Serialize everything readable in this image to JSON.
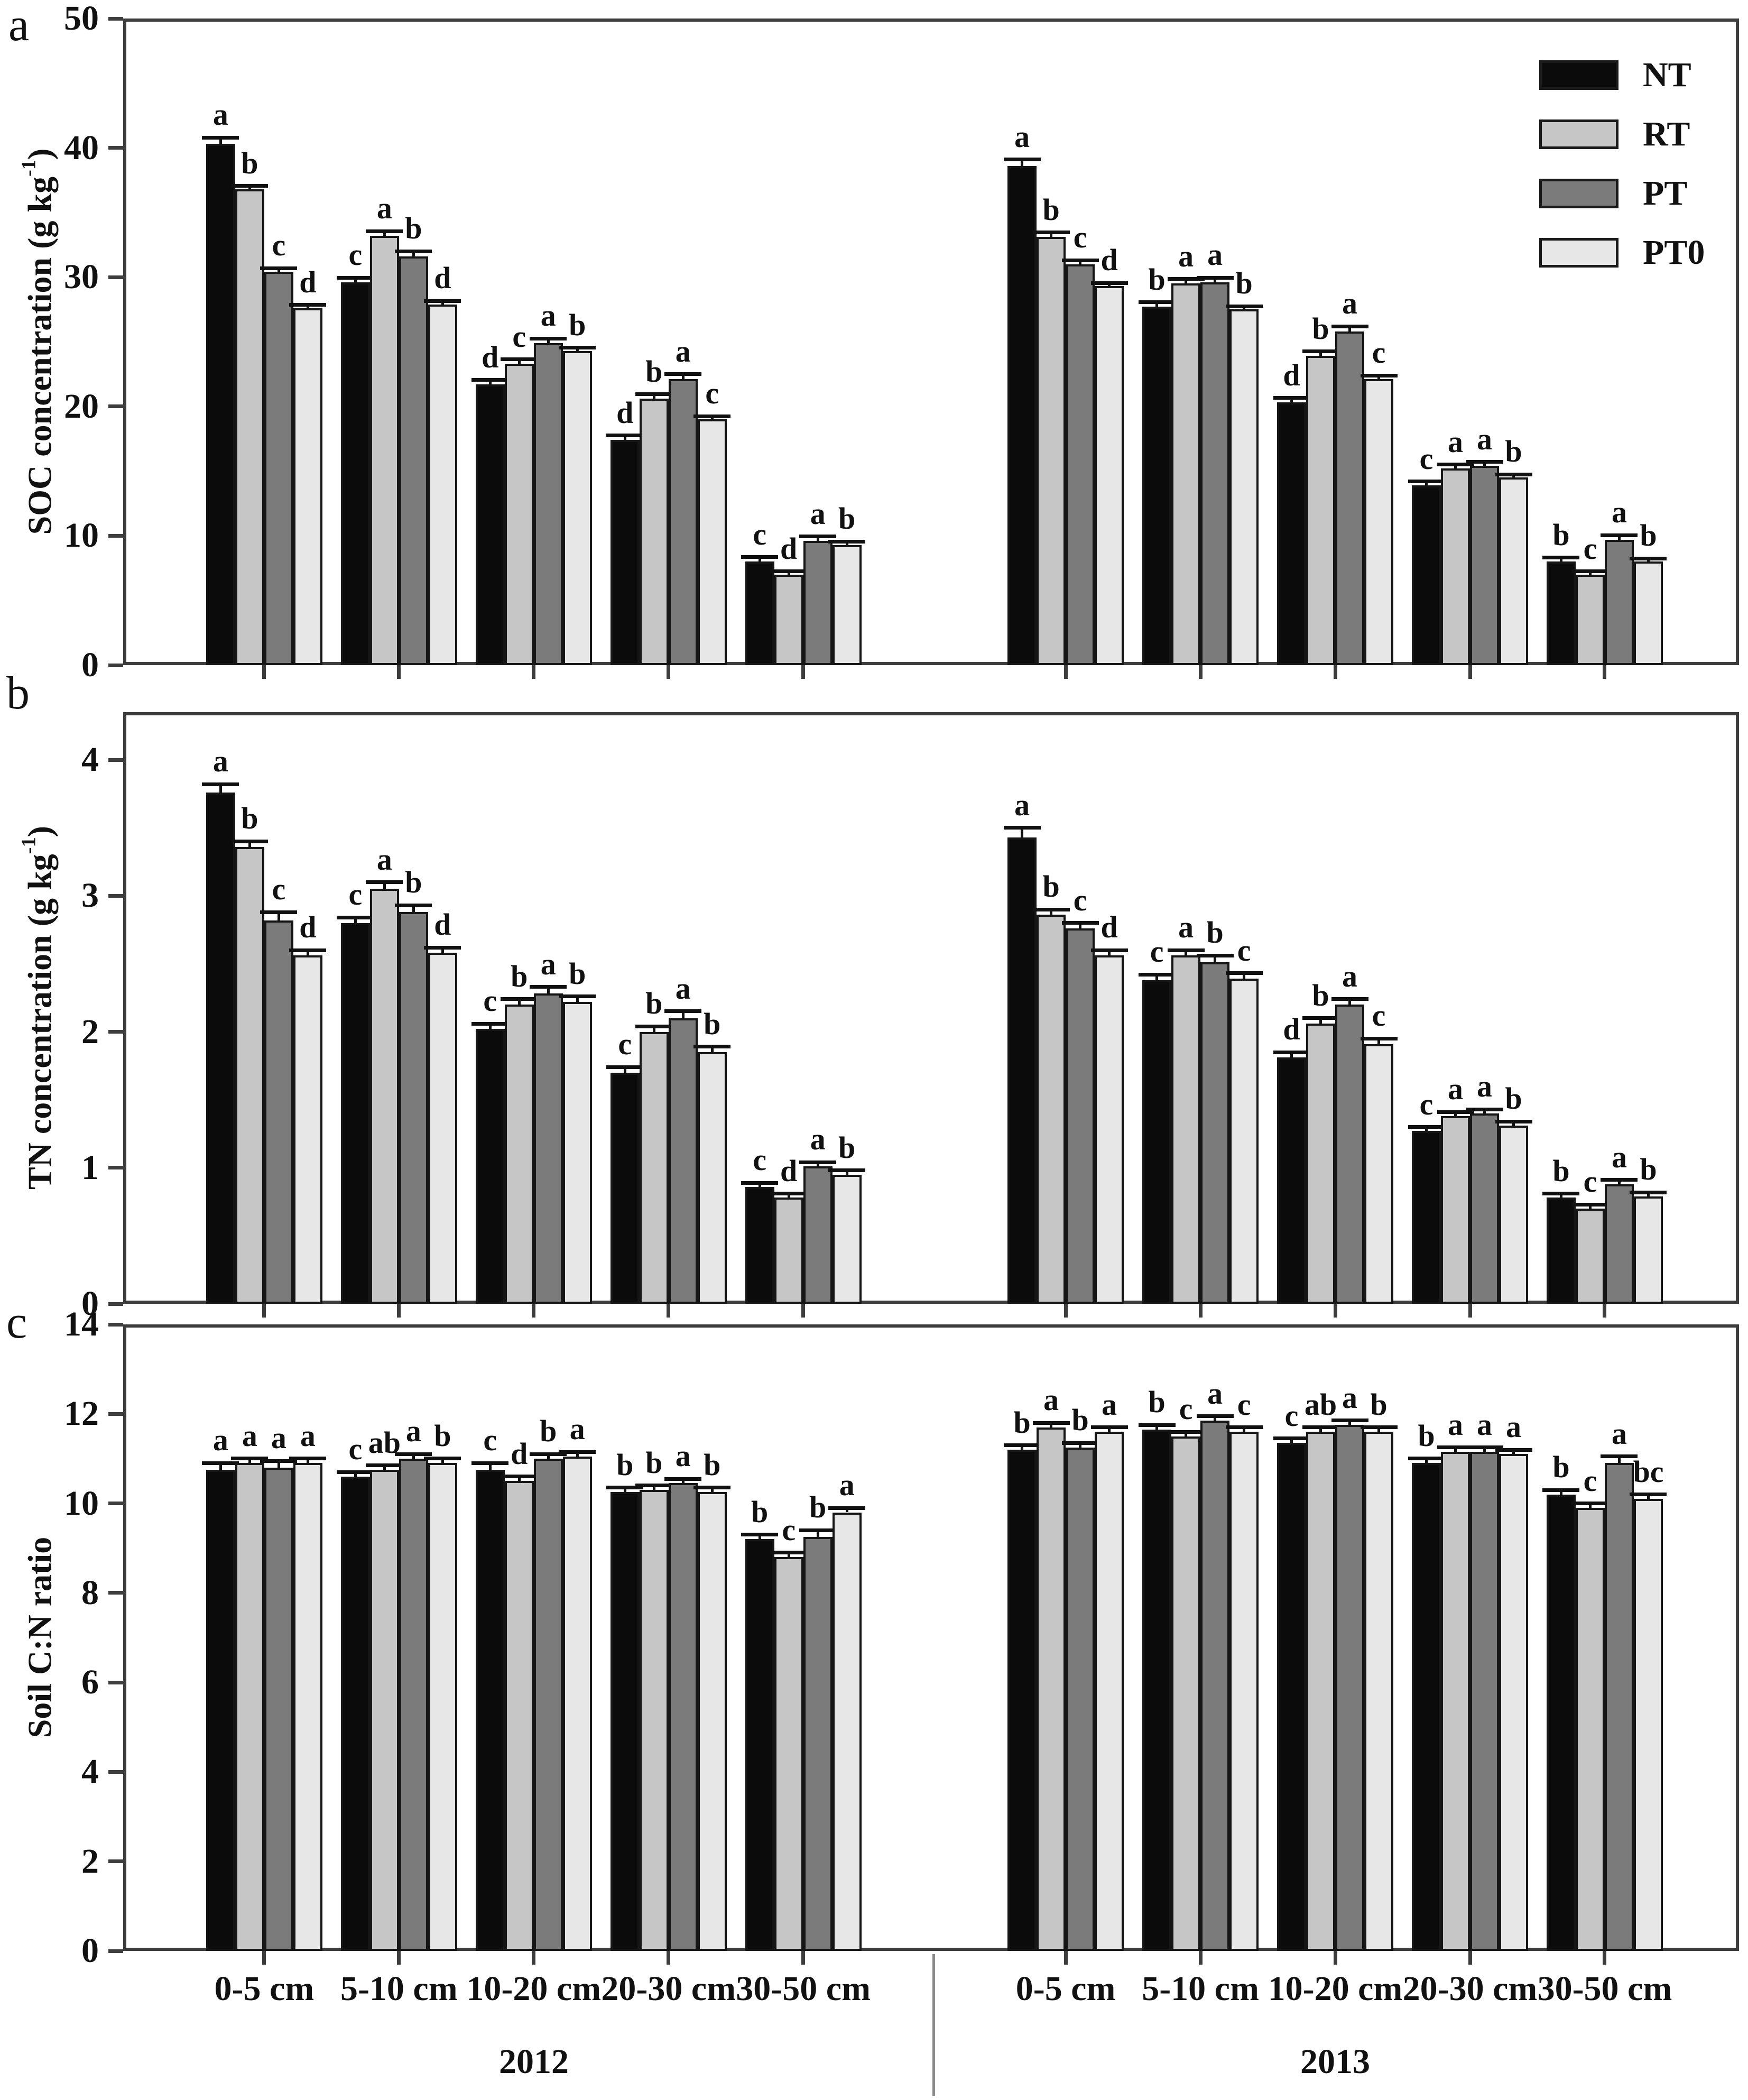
{
  "figure": {
    "panel_labels": [
      "a",
      "b",
      "c"
    ]
  },
  "legend": {
    "items": [
      {
        "label": "NT",
        "color": "#0b0b0b"
      },
      {
        "label": "RT",
        "color": "#c6c6c6"
      },
      {
        "label": "PT",
        "color": "#7b7b7b"
      },
      {
        "label": "PT0",
        "color": "#e7e7e7"
      }
    ]
  },
  "x_axis": {
    "depth_labels": [
      "0-5 cm",
      "5-10 cm",
      "10-20 cm",
      "20-30 cm",
      "30-50 cm"
    ],
    "year_labels": [
      "2012",
      "2013"
    ]
  },
  "chart_data": [
    {
      "type": "bar",
      "panel": "a",
      "ylabel_prefix": "SOC concentration (g kg",
      "ylabel_sup": "-1",
      "ylabel_suffix": ")",
      "ylim": [
        0,
        50
      ],
      "frame_top": 50,
      "yticks": [
        0,
        10,
        20,
        30,
        40,
        50
      ],
      "treatments": [
        "NT",
        "RT",
        "PT",
        "PT0"
      ],
      "legend_position": "top-right",
      "grid": false,
      "years": [
        {
          "year": "2012",
          "groups": [
            {
              "depth": "0-5 cm",
              "values": [
                40.3,
                36.8,
                30.4,
                27.6
              ],
              "letters": [
                "a",
                "b",
                "c",
                "d"
              ],
              "errors": [
                0.5,
                0.25,
                0.3,
                0.25
              ]
            },
            {
              "depth": "5-10 cm",
              "values": [
                29.6,
                33.2,
                31.6,
                27.9
              ],
              "letters": [
                "c",
                "a",
                "b",
                "d"
              ],
              "errors": [
                0.35,
                0.35,
                0.4,
                0.25
              ]
            },
            {
              "depth": "10-20 cm",
              "values": [
                21.7,
                23.3,
                24.9,
                24.3
              ],
              "letters": [
                "d",
                "c",
                "a",
                "b"
              ],
              "errors": [
                0.35,
                0.35,
                0.35,
                0.25
              ]
            },
            {
              "depth": "20-30 cm",
              "values": [
                17.4,
                20.6,
                22.1,
                19.0
              ],
              "letters": [
                "d",
                "b",
                "a",
                "c"
              ],
              "errors": [
                0.35,
                0.35,
                0.4,
                0.25
              ]
            },
            {
              "depth": "30-50 cm",
              "values": [
                8.0,
                7.0,
                9.6,
                9.3
              ],
              "letters": [
                "c",
                "d",
                "a",
                "b"
              ],
              "errors": [
                0.35,
                0.25,
                0.35,
                0.25
              ]
            }
          ]
        },
        {
          "year": "2013",
          "groups": [
            {
              "depth": "0-5 cm",
              "values": [
                38.6,
                33.1,
                31.0,
                29.3
              ],
              "letters": [
                "a",
                "b",
                "c",
                "d"
              ],
              "errors": [
                0.5,
                0.35,
                0.3,
                0.25
              ]
            },
            {
              "depth": "5-10 cm",
              "values": [
                27.7,
                29.5,
                29.6,
                27.5
              ],
              "letters": [
                "b",
                "a",
                "a",
                "b"
              ],
              "errors": [
                0.35,
                0.35,
                0.35,
                0.25
              ]
            },
            {
              "depth": "10-20 cm",
              "values": [
                20.3,
                23.9,
                25.8,
                22.1
              ],
              "letters": [
                "d",
                "b",
                "a",
                "c"
              ],
              "errors": [
                0.35,
                0.35,
                0.4,
                0.3
              ]
            },
            {
              "depth": "20-30 cm",
              "values": [
                13.9,
                15.2,
                15.4,
                14.5
              ],
              "letters": [
                "c",
                "a",
                "a",
                "b"
              ],
              "errors": [
                0.3,
                0.3,
                0.3,
                0.25
              ]
            },
            {
              "depth": "30-50 cm",
              "values": [
                8.0,
                7.0,
                9.7,
                8.0
              ],
              "letters": [
                "b",
                "c",
                "a",
                "b"
              ],
              "errors": [
                0.3,
                0.25,
                0.35,
                0.25
              ]
            }
          ]
        }
      ]
    },
    {
      "type": "bar",
      "panel": "b",
      "ylabel_prefix": "TN concentration (g kg",
      "ylabel_sup": "-1",
      "ylabel_suffix": ")",
      "ylim": [
        0,
        4
      ],
      "frame_top": 4.35,
      "yticks": [
        0,
        1,
        2,
        3,
        4
      ],
      "treatments": [
        "NT",
        "RT",
        "PT",
        "PT0"
      ],
      "grid": false,
      "years": [
        {
          "year": "2012",
          "groups": [
            {
              "depth": "0-5 cm",
              "values": [
                3.76,
                3.36,
                2.82,
                2.56
              ],
              "letters": [
                "a",
                "b",
                "c",
                "d"
              ],
              "errors": [
                0.06,
                0.04,
                0.06,
                0.04
              ]
            },
            {
              "depth": "5-10 cm",
              "values": [
                2.8,
                3.05,
                2.88,
                2.58
              ],
              "letters": [
                "c",
                "a",
                "b",
                "d"
              ],
              "errors": [
                0.04,
                0.05,
                0.05,
                0.04
              ]
            },
            {
              "depth": "10-20 cm",
              "values": [
                2.02,
                2.2,
                2.28,
                2.22
              ],
              "letters": [
                "c",
                "b",
                "a",
                "b"
              ],
              "errors": [
                0.04,
                0.04,
                0.05,
                0.04
              ]
            },
            {
              "depth": "20-30 cm",
              "values": [
                1.7,
                2.0,
                2.1,
                1.85
              ],
              "letters": [
                "c",
                "b",
                "a",
                "b"
              ],
              "errors": [
                0.04,
                0.04,
                0.05,
                0.04
              ]
            },
            {
              "depth": "30-50 cm",
              "values": [
                0.86,
                0.78,
                1.01,
                0.95
              ],
              "letters": [
                "c",
                "d",
                "a",
                "b"
              ],
              "errors": [
                0.03,
                0.03,
                0.03,
                0.03
              ]
            }
          ]
        },
        {
          "year": "2013",
          "groups": [
            {
              "depth": "0-5 cm",
              "values": [
                3.43,
                2.86,
                2.76,
                2.56
              ],
              "letters": [
                "a",
                "b",
                "c",
                "d"
              ],
              "errors": [
                0.07,
                0.04,
                0.04,
                0.04
              ]
            },
            {
              "depth": "5-10 cm",
              "values": [
                2.38,
                2.56,
                2.51,
                2.39
              ],
              "letters": [
                "c",
                "a",
                "b",
                "c"
              ],
              "errors": [
                0.04,
                0.04,
                0.05,
                0.04
              ]
            },
            {
              "depth": "10-20 cm",
              "values": [
                1.81,
                2.06,
                2.2,
                1.91
              ],
              "letters": [
                "d",
                "b",
                "a",
                "c"
              ],
              "errors": [
                0.04,
                0.04,
                0.04,
                0.04
              ]
            },
            {
              "depth": "20-30 cm",
              "values": [
                1.27,
                1.38,
                1.4,
                1.31
              ],
              "letters": [
                "c",
                "a",
                "a",
                "b"
              ],
              "errors": [
                0.03,
                0.03,
                0.03,
                0.03
              ]
            },
            {
              "depth": "30-50 cm",
              "values": [
                0.78,
                0.7,
                0.88,
                0.79
              ],
              "letters": [
                "b",
                "c",
                "a",
                "b"
              ],
              "errors": [
                0.03,
                0.03,
                0.03,
                0.03
              ]
            }
          ]
        }
      ]
    },
    {
      "type": "bar",
      "panel": "c",
      "ylabel_prefix": "Soil C:N ratio",
      "ylabel_sup": "",
      "ylabel_suffix": "",
      "ylim": [
        0,
        14
      ],
      "frame_top": 14,
      "yticks": [
        0,
        2,
        4,
        6,
        8,
        10,
        12,
        14
      ],
      "treatments": [
        "NT",
        "RT",
        "PT",
        "PT0"
      ],
      "grid": false,
      "years": [
        {
          "year": "2012",
          "groups": [
            {
              "depth": "0-5 cm",
              "values": [
                10.75,
                10.9,
                10.8,
                10.9
              ],
              "letters": [
                "a",
                "a",
                "a",
                "a"
              ],
              "errors": [
                0.15,
                0.1,
                0.15,
                0.1
              ]
            },
            {
              "depth": "5-10 cm",
              "values": [
                10.6,
                10.75,
                11.0,
                10.9
              ],
              "letters": [
                "c",
                "ab",
                "a",
                "b"
              ],
              "errors": [
                0.1,
                0.1,
                0.1,
                0.1
              ]
            },
            {
              "depth": "10-20 cm",
              "values": [
                10.75,
                10.5,
                11.0,
                11.05
              ],
              "letters": [
                "c",
                "d",
                "b",
                "a"
              ],
              "errors": [
                0.15,
                0.1,
                0.1,
                0.1
              ]
            },
            {
              "depth": "20-30 cm",
              "values": [
                10.25,
                10.3,
                10.45,
                10.25
              ],
              "letters": [
                "b",
                "b",
                "a",
                "b"
              ],
              "errors": [
                0.1,
                0.1,
                0.1,
                0.1
              ]
            },
            {
              "depth": "30-50 cm",
              "values": [
                9.2,
                8.8,
                9.25,
                9.8
              ],
              "letters": [
                "b",
                "c",
                "b",
                "a"
              ],
              "errors": [
                0.1,
                0.1,
                0.15,
                0.1
              ]
            }
          ]
        },
        {
          "year": "2013",
          "groups": [
            {
              "depth": "0-5 cm",
              "values": [
                11.2,
                11.7,
                11.25,
                11.6
              ],
              "letters": [
                "b",
                "a",
                "b",
                "a"
              ],
              "errors": [
                0.1,
                0.1,
                0.1,
                0.1
              ]
            },
            {
              "depth": "5-10 cm",
              "values": [
                11.65,
                11.5,
                11.85,
                11.6
              ],
              "letters": [
                "b",
                "c",
                "a",
                "c"
              ],
              "errors": [
                0.1,
                0.1,
                0.1,
                0.1
              ]
            },
            {
              "depth": "10-20 cm",
              "values": [
                11.35,
                11.6,
                11.75,
                11.6
              ],
              "letters": [
                "c",
                "ab",
                "a",
                "b"
              ],
              "errors": [
                0.1,
                0.1,
                0.1,
                0.1
              ]
            },
            {
              "depth": "20-30 cm",
              "values": [
                10.9,
                11.15,
                11.15,
                11.1
              ],
              "letters": [
                "b",
                "a",
                "a",
                "a"
              ],
              "errors": [
                0.1,
                0.1,
                0.1,
                0.1
              ]
            },
            {
              "depth": "30-50 cm",
              "values": [
                10.2,
                9.9,
                10.9,
                10.1
              ],
              "letters": [
                "b",
                "c",
                "a",
                "bc"
              ],
              "errors": [
                0.1,
                0.1,
                0.15,
                0.1
              ]
            }
          ]
        }
      ]
    }
  ]
}
